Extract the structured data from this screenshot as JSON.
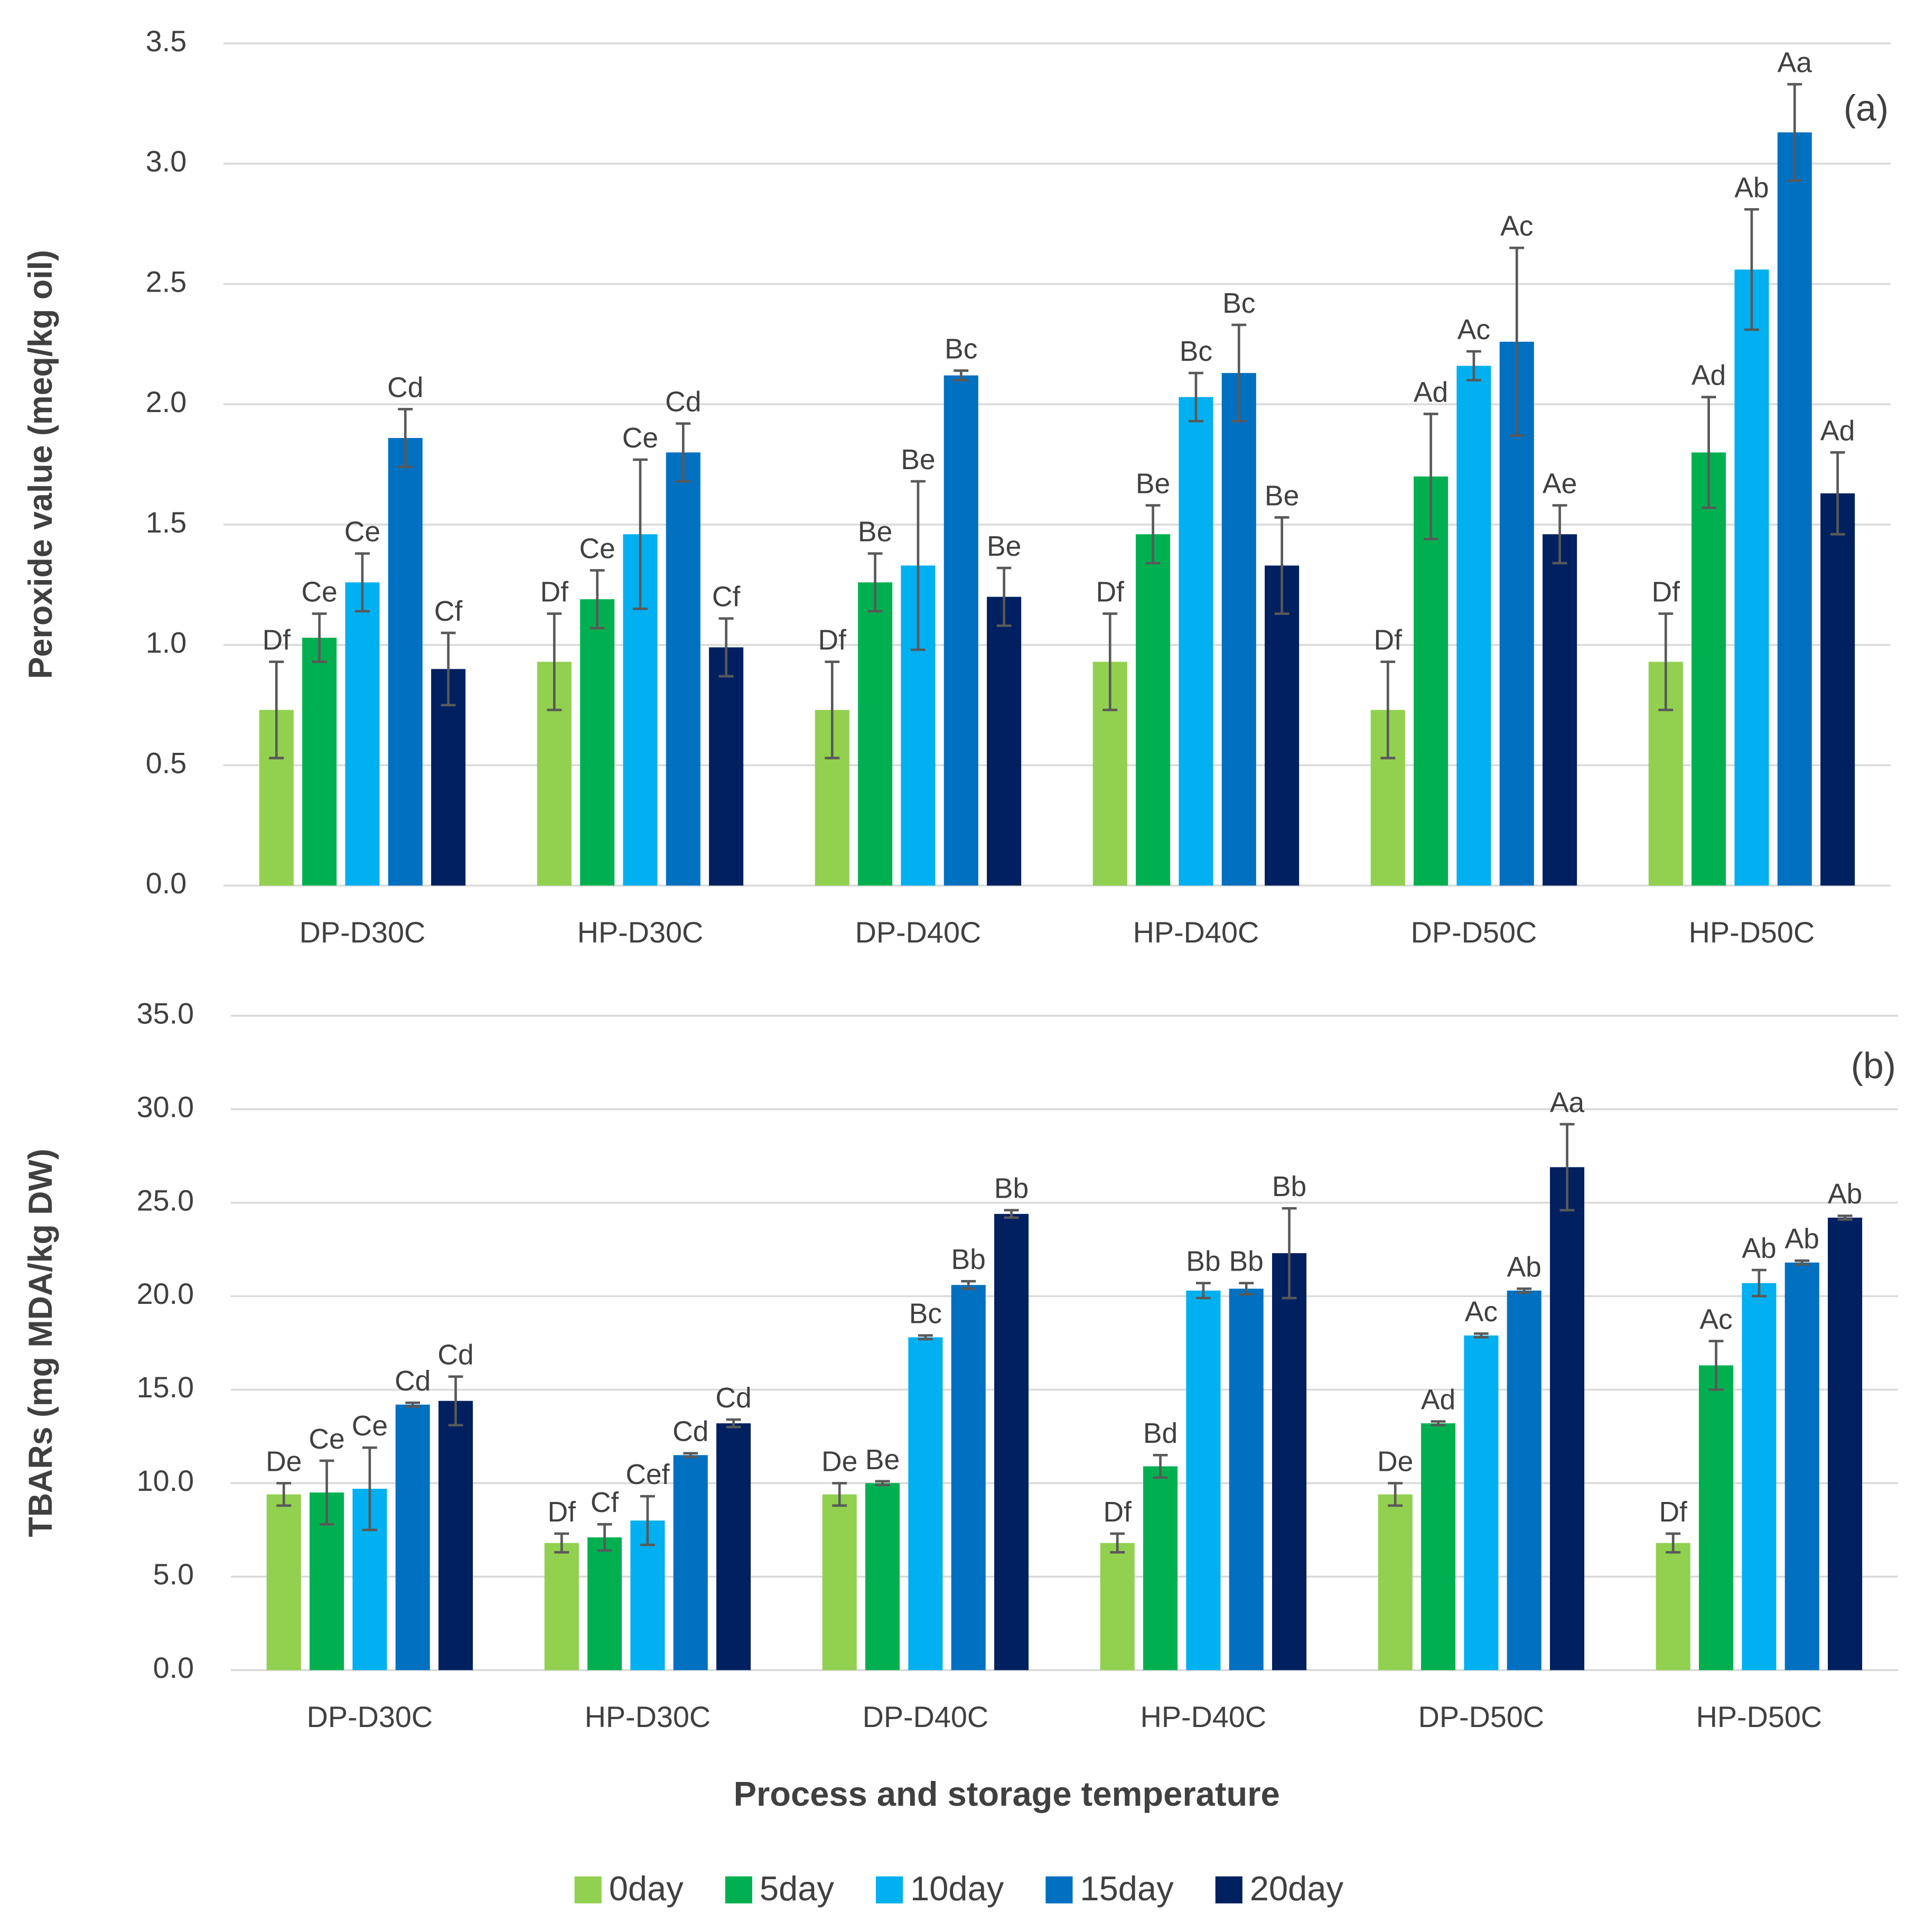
{
  "chart_data": [
    {
      "type": "bar",
      "ylabel": "Peroxide value (meq/kg oil)",
      "annotation": "(a)",
      "categories": [
        "DP-D30C",
        "HP-D30C",
        "DP-D40C",
        "HP-D40C",
        "DP-D50C",
        "HP-D50C"
      ],
      "ylim": [
        0,
        3.5
      ],
      "yticks": [
        {
          "value": 0,
          "label": "0.0"
        },
        0.5,
        {
          "value": 1,
          "label": "1.0"
        },
        1.5,
        {
          "value": 2,
          "label": "2.0"
        },
        2.5,
        {
          "value": 3,
          "label": "3.0"
        },
        3.5
      ],
      "grid": true,
      "series": [
        {
          "color": "#92d050",
          "values": [
            0.73,
            0.93,
            0.73,
            0.93,
            0.73,
            0.93
          ],
          "errors": [
            0.2,
            0.2,
            0.2,
            0.2,
            0.2,
            0.2
          ],
          "labels": [
            "Df",
            "Df",
            "Df",
            "Df",
            "Df",
            "Df"
          ]
        },
        {
          "color": "#00b050",
          "values": [
            1.03,
            1.19,
            1.26,
            1.46,
            1.7,
            1.8
          ],
          "errors": [
            0.1,
            0.12,
            0.12,
            0.12,
            0.26,
            0.23
          ],
          "labels": [
            "Ce",
            "Ce",
            "Be",
            "Be",
            "Ad",
            "Ad"
          ]
        },
        {
          "color": "#00b0f0",
          "values": [
            1.26,
            1.46,
            1.33,
            2.03,
            2.16,
            2.56
          ],
          "errors": [
            0.12,
            0.31,
            0.35,
            0.1,
            0.06,
            0.25
          ],
          "labels": [
            "Ce",
            "Ce",
            "Be",
            "Bc",
            "Ac",
            "Ab"
          ]
        },
        {
          "color": "#0070c0",
          "values": [
            1.86,
            1.8,
            2.12,
            2.13,
            2.26,
            3.13
          ],
          "errors": [
            0.12,
            0.12,
            0.02,
            0.2,
            0.39,
            0.2
          ],
          "labels": [
            "Cd",
            "Cd",
            "Bc",
            "Bc",
            "Ac",
            "Aa"
          ]
        },
        {
          "color": "#002060",
          "values": [
            0.9,
            0.99,
            1.2,
            1.33,
            1.46,
            1.63
          ],
          "errors": [
            0.15,
            0.12,
            0.12,
            0.2,
            0.12,
            0.17
          ],
          "labels": [
            "Cf",
            "Cf",
            "Be",
            "Be",
            "Ae",
            "Ad"
          ]
        }
      ]
    },
    {
      "type": "bar",
      "ylabel": "TBARs (mg MDA/kg DW)",
      "annotation": "(b)",
      "xlabel": "Process and storage temperature",
      "categories": [
        "DP-D30C",
        "HP-D30C",
        "DP-D40C",
        "HP-D40C",
        "DP-D50C",
        "HP-D50C"
      ],
      "ylim": [
        0,
        35
      ],
      "yticks": [
        {
          "value": 0,
          "label": "0.0"
        },
        {
          "value": 5,
          "label": "5.0"
        },
        {
          "value": 10,
          "label": "10.0"
        },
        {
          "value": 15,
          "label": "15.0"
        },
        {
          "value": 20,
          "label": "20.0"
        },
        {
          "value": 25,
          "label": "25.0"
        },
        {
          "value": 30,
          "label": "30.0"
        },
        {
          "value": 35,
          "label": "35.0"
        }
      ],
      "grid": true,
      "series": [
        {
          "name": "0day",
          "color": "#92d050",
          "values": [
            9.4,
            6.8,
            9.4,
            6.8,
            9.4,
            6.8
          ],
          "errors": [
            0.6,
            0.5,
            0.6,
            0.5,
            0.6,
            0.5
          ],
          "labels": [
            "De",
            "Df",
            "De",
            "Df",
            "De",
            "Df"
          ]
        },
        {
          "name": "5day",
          "color": "#00b050",
          "values": [
            9.5,
            7.1,
            10.0,
            10.9,
            13.2,
            16.3
          ],
          "errors": [
            1.7,
            0.7,
            0.1,
            0.6,
            0.1,
            1.3
          ],
          "labels": [
            "Ce",
            "Cf",
            "Be",
            "Bd",
            "Ad",
            "Ac"
          ]
        },
        {
          "name": "10day",
          "color": "#00b0f0",
          "values": [
            9.7,
            8.0,
            17.8,
            20.3,
            17.9,
            20.7
          ],
          "errors": [
            2.2,
            1.3,
            0.1,
            0.4,
            0.1,
            0.7
          ],
          "labels": [
            "Ce",
            "Cef",
            "Bc",
            "Bb",
            "Ac",
            "Ab"
          ]
        },
        {
          "name": "15day",
          "color": "#0070c0",
          "values": [
            14.2,
            11.5,
            20.6,
            20.4,
            20.3,
            21.8
          ],
          "errors": [
            0.1,
            0.1,
            0.2,
            0.3,
            0.1,
            0.1
          ],
          "labels": [
            "Cd",
            "Cd",
            "Bb",
            "Bb",
            "Ab",
            "Ab"
          ]
        },
        {
          "name": "20day",
          "color": "#002060",
          "values": [
            14.4,
            13.2,
            24.4,
            22.3,
            26.9,
            24.2
          ],
          "errors": [
            1.3,
            0.2,
            0.2,
            2.4,
            2.3,
            0.1
          ],
          "labels": [
            "Cd",
            "Cd",
            "Bb",
            "Bb",
            "Aa",
            "Ab"
          ]
        }
      ]
    }
  ]
}
